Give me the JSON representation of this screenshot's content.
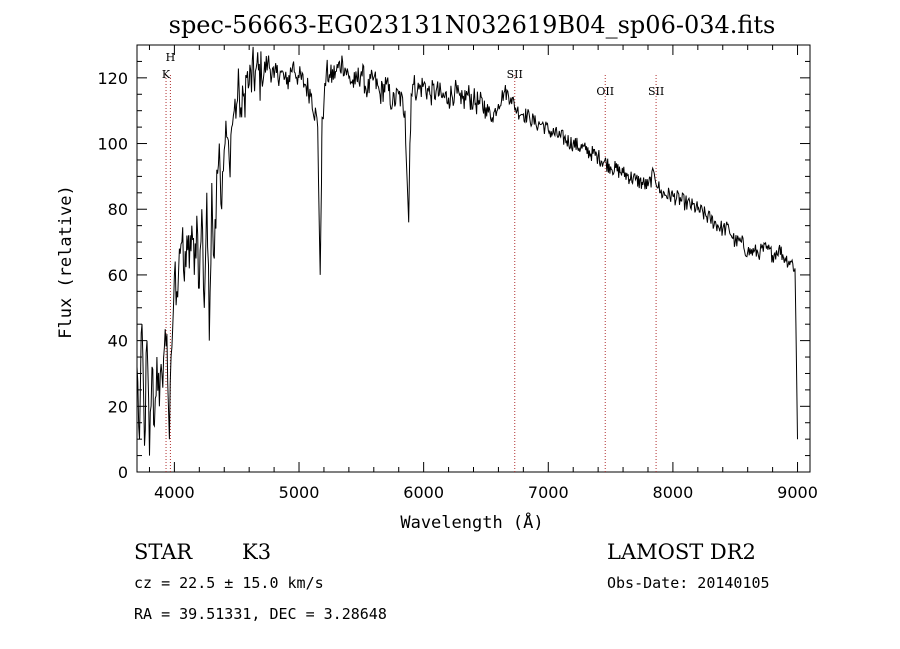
{
  "chart_data": {
    "type": "line",
    "title": "spec-56663-EG023131N032619B04_sp06-034.fits",
    "xlabel": "Wavelength (Å)",
    "ylabel": "Flux (relative)",
    "xlim": [
      3700,
      9100
    ],
    "ylim": [
      0,
      130
    ],
    "x_ticks": [
      4000,
      5000,
      6000,
      7000,
      8000,
      9000
    ],
    "y_ticks": [
      0,
      20,
      40,
      60,
      80,
      100,
      120
    ],
    "grid": false,
    "series": [
      {
        "color": "#000000",
        "x": [
          3700,
          3720,
          3740,
          3760,
          3780,
          3800,
          3820,
          3840,
          3860,
          3880,
          3900,
          3920,
          3940,
          3960,
          3980,
          4000,
          4020,
          4040,
          4060,
          4080,
          4100,
          4120,
          4140,
          4160,
          4180,
          4200,
          4220,
          4240,
          4260,
          4280,
          4300,
          4320,
          4340,
          4360,
          4380,
          4400,
          4420,
          4440,
          4460,
          4480,
          4500,
          4520,
          4540,
          4560,
          4580,
          4600,
          4650,
          4700,
          4750,
          4800,
          4850,
          4900,
          4950,
          5000,
          5050,
          5100,
          5150,
          5170,
          5180,
          5185,
          5200,
          5220,
          5250,
          5300,
          5350,
          5400,
          5450,
          5500,
          5550,
          5600,
          5650,
          5700,
          5750,
          5800,
          5850,
          5880,
          5890,
          5900,
          5920,
          5950,
          6000,
          6050,
          6100,
          6150,
          6200,
          6250,
          6300,
          6350,
          6400,
          6450,
          6500,
          6550,
          6600,
          6650,
          6700,
          6750,
          6800,
          6850,
          6900,
          6950,
          7000,
          7100,
          7200,
          7300,
          7400,
          7500,
          7600,
          7700,
          7800,
          7850,
          7900,
          8000,
          8100,
          8200,
          8300,
          8400,
          8450,
          8500,
          8550,
          8600,
          8650,
          8700,
          8750,
          8800,
          8850,
          8900,
          8950,
          8980,
          9000
        ],
        "y": [
          32,
          10,
          45,
          8,
          40,
          5,
          32,
          14,
          35,
          20,
          30,
          38,
          42,
          10,
          38,
          60,
          55,
          68,
          70,
          58,
          72,
          62,
          75,
          60,
          78,
          56,
          80,
          50,
          85,
          40,
          88,
          65,
          92,
          100,
          80,
          98,
          102,
          95,
          105,
          110,
          112,
          116,
          108,
          115,
          120,
          118,
          122,
          120,
          125,
          120,
          122,
          118,
          124,
          120,
          118,
          115,
          105,
          60,
          88,
          108,
          112,
          122,
          120,
          122,
          125,
          120,
          118,
          122,
          116,
          120,
          115,
          118,
          112,
          115,
          110,
          76,
          100,
          115,
          118,
          116,
          118,
          115,
          116,
          114,
          114,
          116,
          112,
          115,
          113,
          112,
          111,
          108,
          112,
          116,
          114,
          110,
          109,
          108,
          106,
          106,
          104,
          102,
          100,
          98,
          96,
          93,
          91,
          89,
          87,
          91,
          85,
          84,
          82,
          80,
          77,
          74,
          74,
          70,
          70,
          67,
          67,
          67,
          68,
          66,
          68,
          65,
          64,
          62,
          10
        ]
      }
    ],
    "annotations": [
      {
        "label": "H",
        "x": 3968
      },
      {
        "label": "K",
        "x": 3933
      },
      {
        "label": "SII",
        "x": 6731
      },
      {
        "label": "OII",
        "x": 7457
      },
      {
        "label": "SII",
        "x": 7865
      }
    ]
  },
  "info": {
    "class": "STAR",
    "subclass": "K3",
    "cz": "cz = 22.5 ± 15.0 km/s",
    "radec": "RA =  39.51331, DEC =   3.28648",
    "survey": "LAMOST DR2",
    "obsdate": "Obs-Date: 20140105"
  }
}
